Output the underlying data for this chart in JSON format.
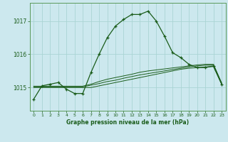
{
  "title": "Graphe pression niveau de la mer (hPa)",
  "bg_color": "#cce8ee",
  "grid_color": "#aad4d4",
  "line_color": "#1a5c1a",
  "spine_color": "#5a9a5a",
  "x_ticks": [
    0,
    1,
    2,
    3,
    4,
    5,
    6,
    7,
    8,
    9,
    10,
    11,
    12,
    13,
    14,
    15,
    16,
    17,
    18,
    19,
    20,
    21,
    22,
    23
  ],
  "y_ticks": [
    1015,
    1016,
    1017
  ],
  "ylim": [
    1014.3,
    1017.55
  ],
  "xlim": [
    -0.5,
    23.5
  ],
  "main_line": [
    1014.65,
    1015.05,
    1015.1,
    1015.15,
    1014.95,
    1014.82,
    1014.82,
    1015.45,
    1016.0,
    1016.5,
    1016.85,
    1017.05,
    1017.2,
    1017.2,
    1017.3,
    1017.0,
    1016.55,
    1016.05,
    1015.9,
    1015.7,
    1015.6,
    1015.6,
    1015.65,
    1015.1
  ],
  "flat_line1": [
    1015.0,
    1015.0,
    1015.0,
    1015.0,
    1015.0,
    1015.0,
    1015.0,
    1015.0,
    1015.05,
    1015.1,
    1015.15,
    1015.2,
    1015.25,
    1015.3,
    1015.35,
    1015.4,
    1015.45,
    1015.5,
    1015.55,
    1015.58,
    1015.6,
    1015.62,
    1015.63,
    1015.1
  ],
  "flat_line2": [
    1015.02,
    1015.02,
    1015.02,
    1015.02,
    1015.02,
    1015.02,
    1015.02,
    1015.07,
    1015.12,
    1015.18,
    1015.22,
    1015.28,
    1015.33,
    1015.38,
    1015.42,
    1015.46,
    1015.5,
    1015.54,
    1015.58,
    1015.62,
    1015.65,
    1015.67,
    1015.67,
    1015.12
  ],
  "flat_line3": [
    1015.04,
    1015.04,
    1015.04,
    1015.04,
    1015.04,
    1015.04,
    1015.04,
    1015.1,
    1015.18,
    1015.25,
    1015.3,
    1015.35,
    1015.4,
    1015.46,
    1015.5,
    1015.53,
    1015.56,
    1015.59,
    1015.62,
    1015.65,
    1015.68,
    1015.7,
    1015.7,
    1015.14
  ]
}
